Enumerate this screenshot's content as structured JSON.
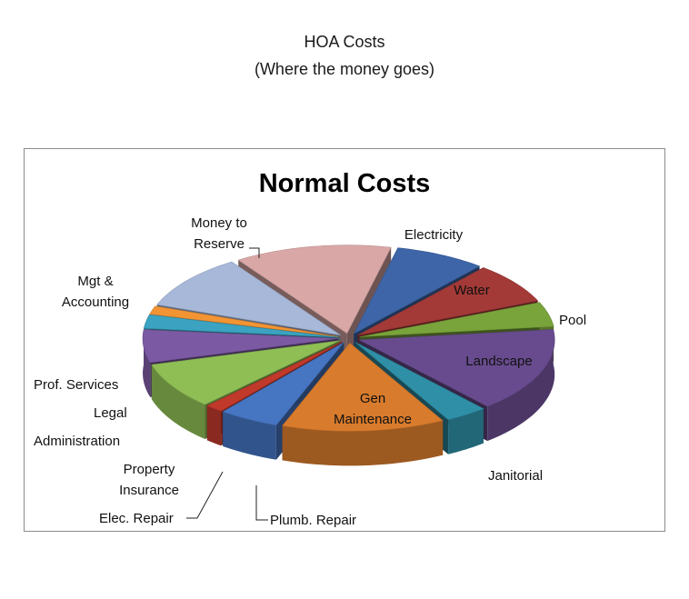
{
  "page": {
    "title": "HOA Costs",
    "subtitle": "(Where the money goes)"
  },
  "chart_data": {
    "type": "pie",
    "title": "Normal Costs",
    "style": "3d-exploded",
    "legend": "none",
    "categories": [
      "Electricity",
      "Water",
      "Pool",
      "Landscape",
      "Janitorial",
      "Gen Maintenance",
      "Plumb.  Repair",
      "Elec. Repair",
      "Property Insurance",
      "Administration",
      "Legal",
      "Prof. Services",
      "Mgt & Accounting",
      "Money to Reserve"
    ],
    "values": [
      7.5,
      7.5,
      4.5,
      15.5,
      3.5,
      13.5,
      5,
      1.5,
      8.5,
      6,
      2.5,
      1.5,
      10,
      13
    ],
    "colors": [
      "#3d65a8",
      "#a33a37",
      "#79a33b",
      "#684b8e",
      "#2f8fa6",
      "#d87b2c",
      "#4675c2",
      "#c0392b",
      "#8fbe55",
      "#7b5aa3",
      "#3ba3c1",
      "#f29433",
      "#a7b8d9",
      "#d9a7a6"
    ]
  }
}
